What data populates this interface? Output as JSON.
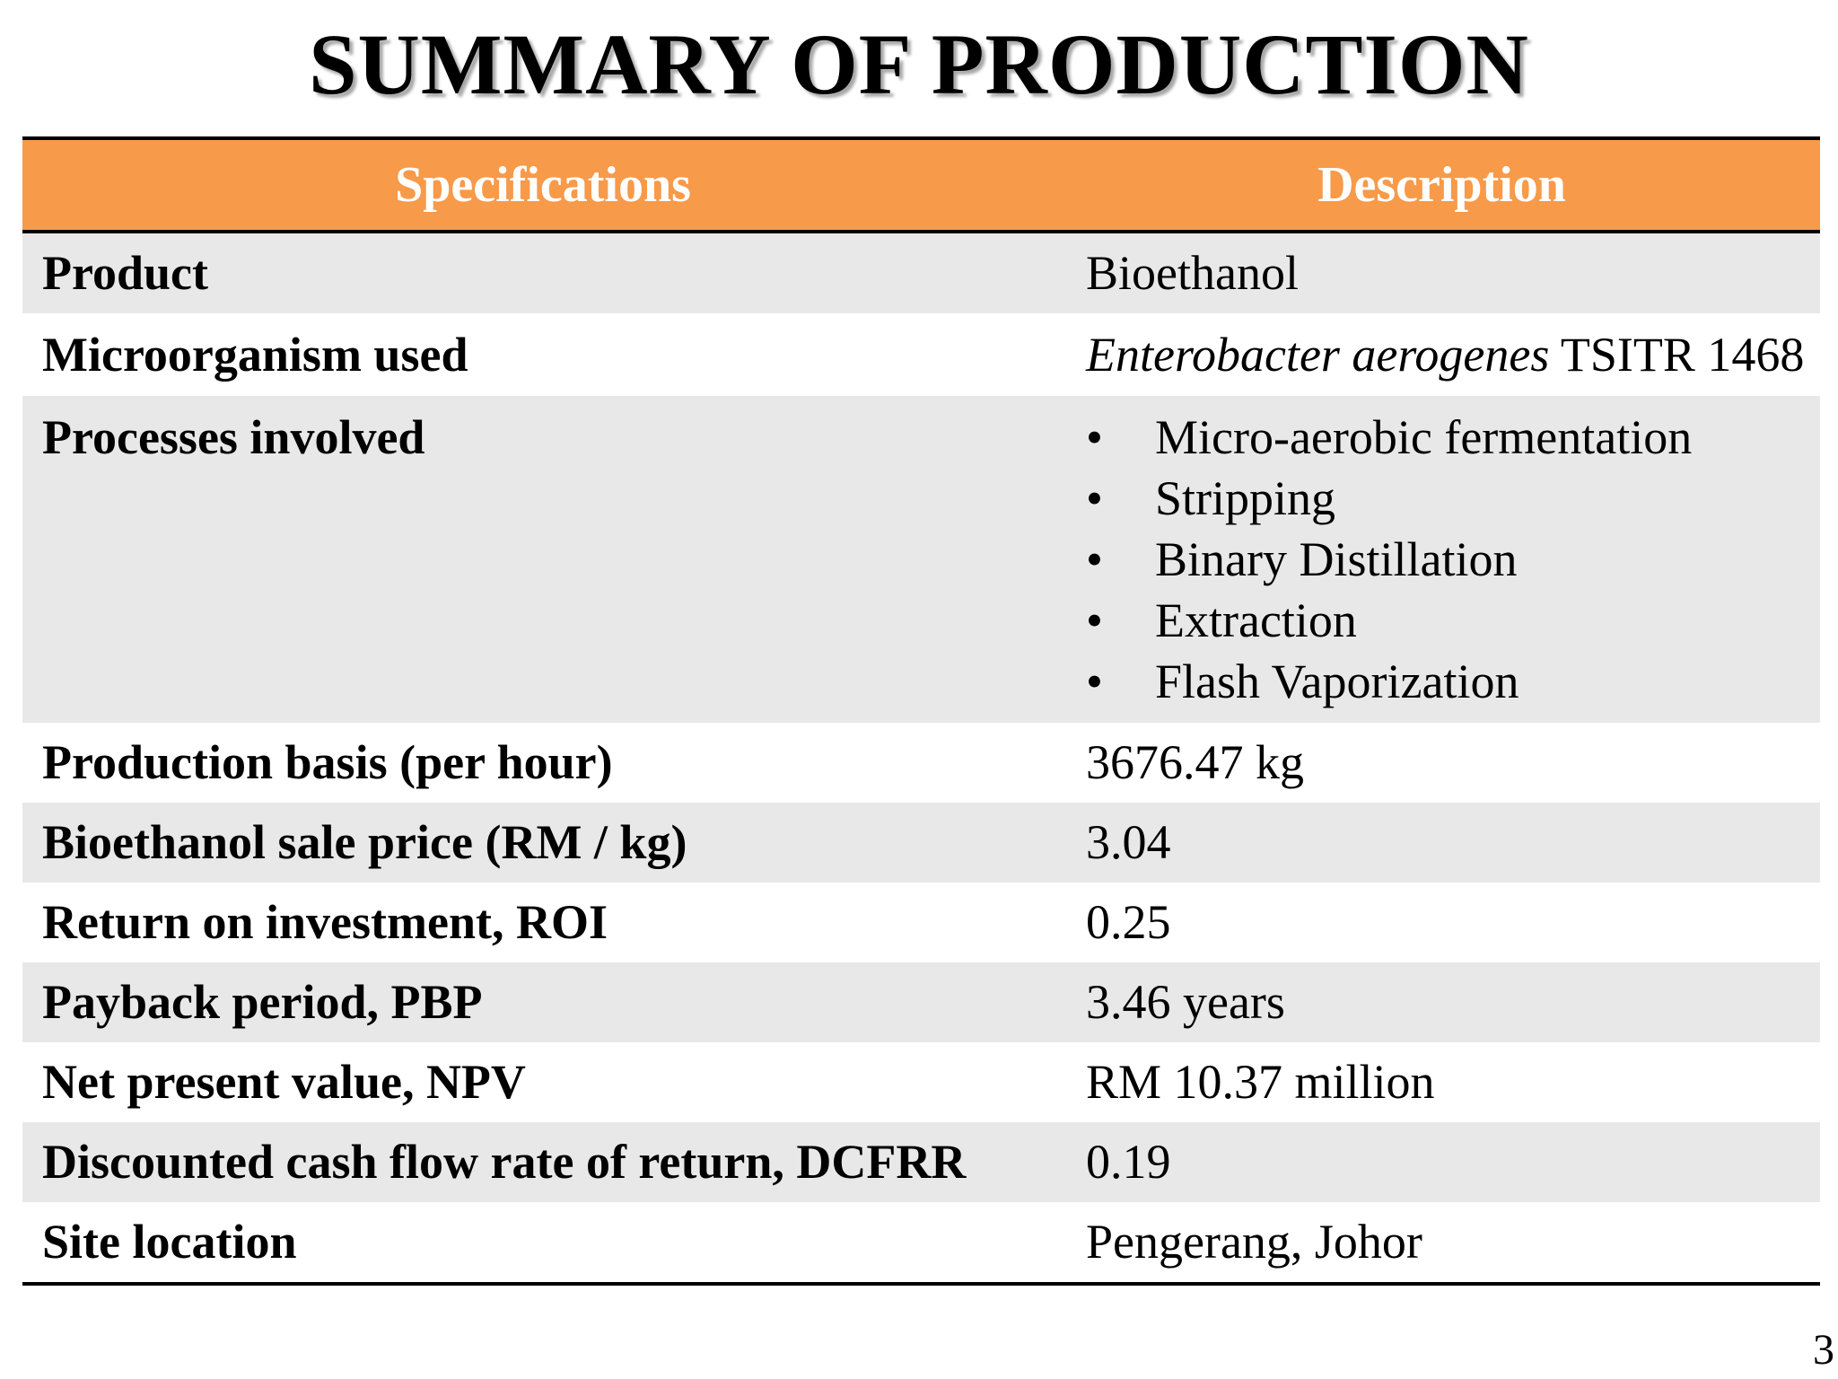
{
  "title": "SUMMARY OF PRODUCTION",
  "table": {
    "headers": {
      "specifications": "Specifications",
      "description": "Description"
    },
    "rows": [
      {
        "spec": "Product",
        "desc": "Bioethanol"
      },
      {
        "spec": "Microorganism used",
        "desc_italic": "Enterobacter aerogenes",
        "desc_rest": " TSITR 1468"
      },
      {
        "spec": "Processes involved",
        "bullets": [
          "Micro-aerobic fermentation",
          "Stripping",
          "Binary Distillation",
          "Extraction",
          "Flash Vaporization"
        ]
      },
      {
        "spec": "Production basis (per hour)",
        "desc": "3676.47 kg"
      },
      {
        "spec": "Bioethanol sale price (RM / kg)",
        "desc": "3.04"
      },
      {
        "spec": "Return on investment, ROI",
        "desc": "0.25"
      },
      {
        "spec": "Payback period, PBP",
        "desc": "3.46 years"
      },
      {
        "spec": "Net present value, NPV",
        "desc": "RM 10.37 million"
      },
      {
        "spec": "Discounted cash flow rate of return, DCFRR",
        "desc": "0.19"
      },
      {
        "spec": "Site location",
        "desc": "Pengerang, Johor"
      }
    ]
  },
  "page_number": "3",
  "colors": {
    "header_background": "#f79a4a",
    "header_text": "#ffffff",
    "row_shade": "#e8e8e8"
  },
  "icons": {
    "bullet": "bullet-dot"
  }
}
